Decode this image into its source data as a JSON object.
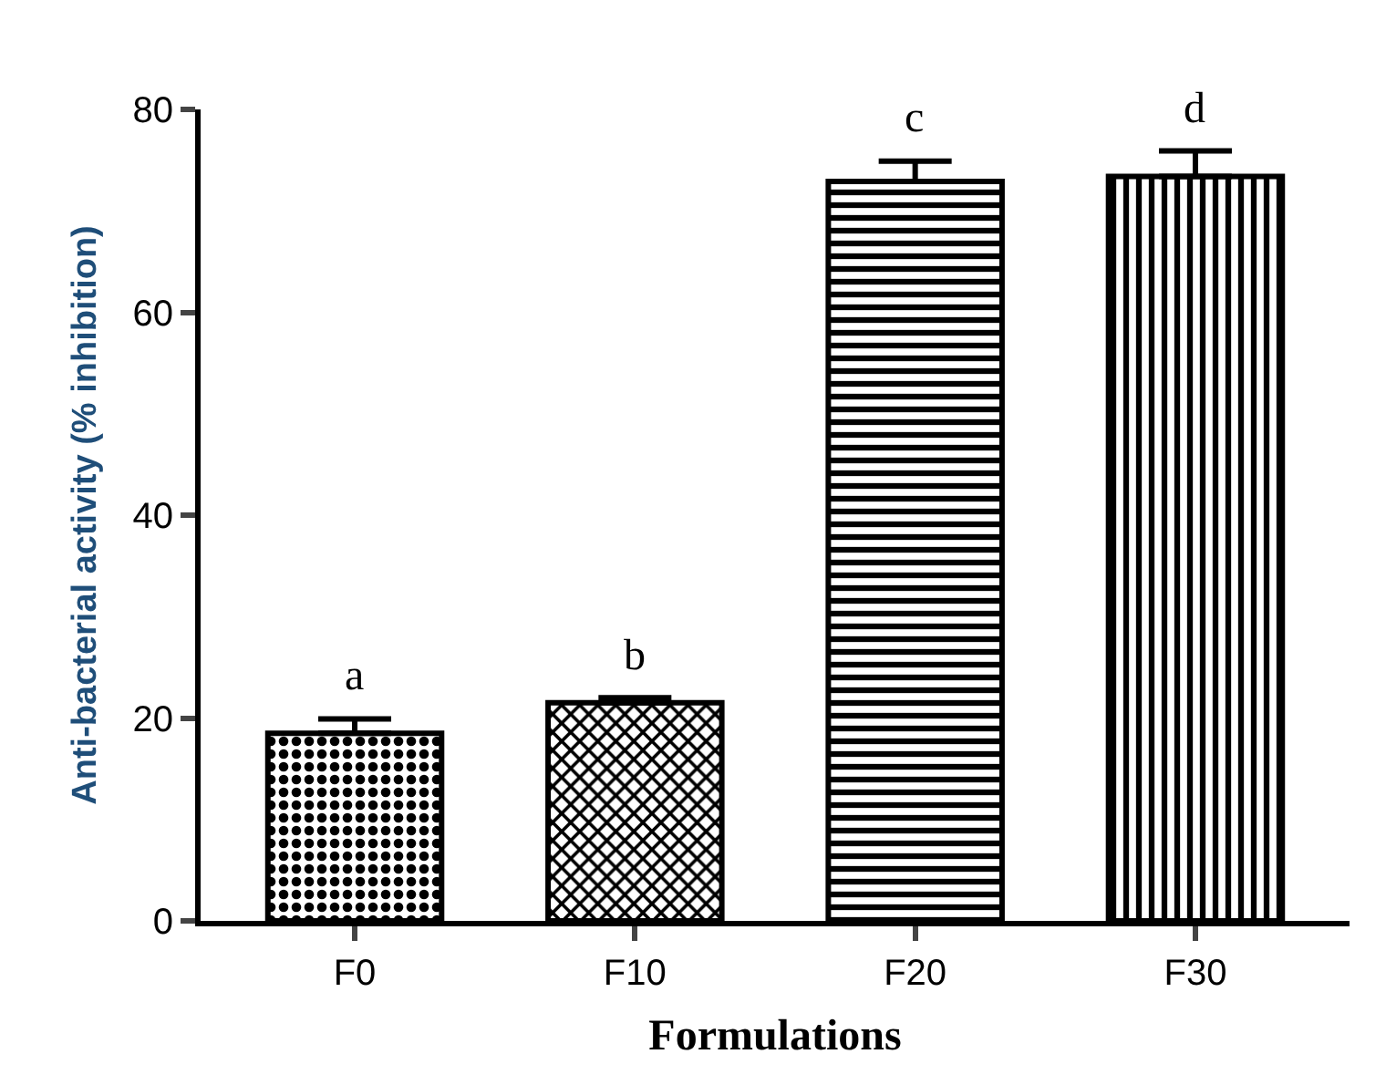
{
  "chart_data": {
    "type": "bar",
    "xlabel": "Formulations",
    "ylabel": "Anti-bacterial activity (% inhibition)",
    "categories": [
      "F0",
      "F10",
      "F20",
      "F30"
    ],
    "values": [
      18.5,
      21.5,
      72.9,
      73.4
    ],
    "errors": [
      [
        18.5,
        19.9
      ],
      [
        21.5,
        22.0
      ],
      [
        72.9,
        74.9
      ],
      [
        73.4,
        75.9
      ]
    ],
    "colors": [
      "#000000",
      "#000000",
      "#000000",
      "#000000"
    ],
    "ylim": [
      0,
      80
    ],
    "yticks": [
      0,
      20,
      40,
      60,
      80
    ],
    "annotations": [
      {
        "text": "a",
        "x": "F0",
        "y": 19.9
      },
      {
        "text": "b",
        "x": "F10",
        "y": 22.0
      },
      {
        "text": "c",
        "x": "F20",
        "y": 74.9
      },
      {
        "text": "d",
        "x": "F30",
        "y": 75.9
      }
    ]
  }
}
